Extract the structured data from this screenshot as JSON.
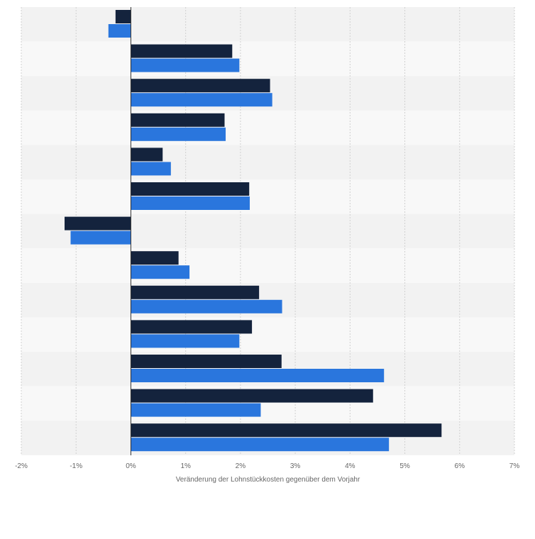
{
  "chart_data": {
    "type": "bar",
    "orientation": "horizontal",
    "title": "",
    "xlabel": "Veränderung der Lohnstückkosten gegenüber dem Vorjahr",
    "ylabel": "",
    "xlim": [
      -2,
      7
    ],
    "x_ticks": [
      -2,
      -1,
      0,
      1,
      2,
      3,
      4,
      5,
      6,
      7
    ],
    "x_tick_labels": [
      "-2%",
      "-1%",
      "0%",
      "1%",
      "2%",
      "3%",
      "4%",
      "5%",
      "6%",
      "7%"
    ],
    "categories": [
      "",
      "",
      "",
      "",
      "",
      "",
      "",
      "",
      "",
      "",
      "",
      "",
      ""
    ],
    "grid": true,
    "legend": "none",
    "series": [
      {
        "color": "#14233d",
        "values": [
          -0.28,
          1.85,
          2.54,
          1.71,
          0.58,
          2.16,
          -1.21,
          0.87,
          2.34,
          2.21,
          2.75,
          4.42,
          5.67
        ]
      },
      {
        "color": "#2a76dd",
        "values": [
          -0.41,
          1.98,
          2.58,
          1.73,
          0.73,
          2.17,
          -1.1,
          1.07,
          2.76,
          1.98,
          4.62,
          2.37,
          4.71
        ]
      }
    ]
  }
}
